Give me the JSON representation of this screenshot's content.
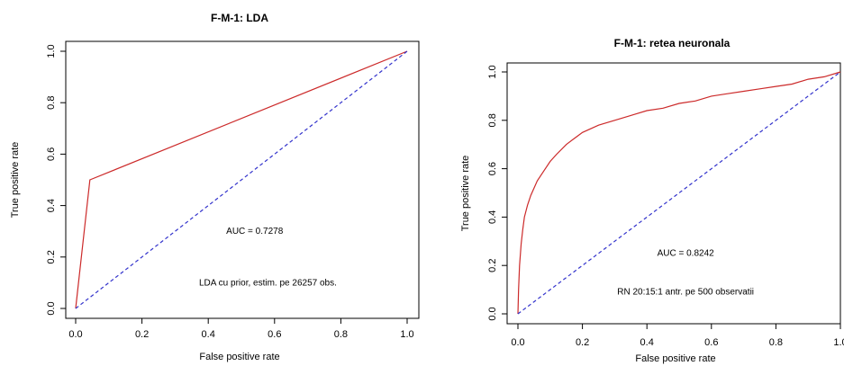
{
  "chart_data": [
    {
      "type": "line",
      "title": "F-M-1: LDA",
      "xlabel": "False positive rate",
      "ylabel": "True positive rate",
      "xlim": [
        0,
        1
      ],
      "ylim": [
        0,
        1
      ],
      "xticks": [
        "0.0",
        "0.2",
        "0.4",
        "0.6",
        "0.8",
        "1.0"
      ],
      "yticks": [
        "0.0",
        "0.2",
        "0.4",
        "0.6",
        "0.8",
        "1.0"
      ],
      "grid": false,
      "series": [
        {
          "color": "#cc2a2a",
          "style": "solid",
          "x": [
            0.0,
            0.043,
            1.0
          ],
          "y": [
            0.0,
            0.5,
            1.0
          ]
        },
        {
          "color": "#3333cc",
          "style": "dashed",
          "x": [
            0.0,
            1.0
          ],
          "y": [
            0.0,
            1.0
          ]
        }
      ],
      "annotations": [
        {
          "text": "AUC = 0.7278",
          "x": 0.54,
          "y": 0.29
        },
        {
          "text": "LDA cu prior, estim. pe 26257 obs.",
          "x": 0.58,
          "y": 0.09
        }
      ]
    },
    {
      "type": "line",
      "title": "F-M-1: retea neuronala",
      "xlabel": "False positive rate",
      "ylabel": "True positive rate",
      "xlim": [
        0,
        1
      ],
      "ylim": [
        0,
        1
      ],
      "xticks": [
        "0.0",
        "0.2",
        "0.4",
        "0.6",
        "0.8",
        "1.0"
      ],
      "yticks": [
        "0.0",
        "0.2",
        "0.4",
        "0.6",
        "0.8",
        "1.0"
      ],
      "grid": false,
      "series": [
        {
          "color": "#cc2a2a",
          "style": "solid",
          "x": [
            0.0,
            0.002,
            0.005,
            0.01,
            0.015,
            0.02,
            0.03,
            0.04,
            0.05,
            0.06,
            0.08,
            0.1,
            0.12,
            0.15,
            0.18,
            0.2,
            0.25,
            0.3,
            0.35,
            0.4,
            0.45,
            0.5,
            0.55,
            0.6,
            0.65,
            0.7,
            0.75,
            0.8,
            0.85,
            0.9,
            0.95,
            1.0
          ],
          "y": [
            0.0,
            0.1,
            0.2,
            0.29,
            0.35,
            0.4,
            0.45,
            0.49,
            0.52,
            0.55,
            0.59,
            0.63,
            0.66,
            0.7,
            0.73,
            0.75,
            0.78,
            0.8,
            0.82,
            0.84,
            0.85,
            0.87,
            0.88,
            0.9,
            0.91,
            0.92,
            0.93,
            0.94,
            0.95,
            0.97,
            0.98,
            1.0
          ]
        },
        {
          "color": "#3333cc",
          "style": "dashed",
          "x": [
            0.0,
            1.0
          ],
          "y": [
            0.0,
            1.0
          ]
        }
      ],
      "annotations": [
        {
          "text": "AUC = 0.8242",
          "x": 0.52,
          "y": 0.24
        },
        {
          "text": "RN 20:15:1 antr. pe 500 observatii",
          "x": 0.52,
          "y": 0.08
        }
      ]
    }
  ]
}
